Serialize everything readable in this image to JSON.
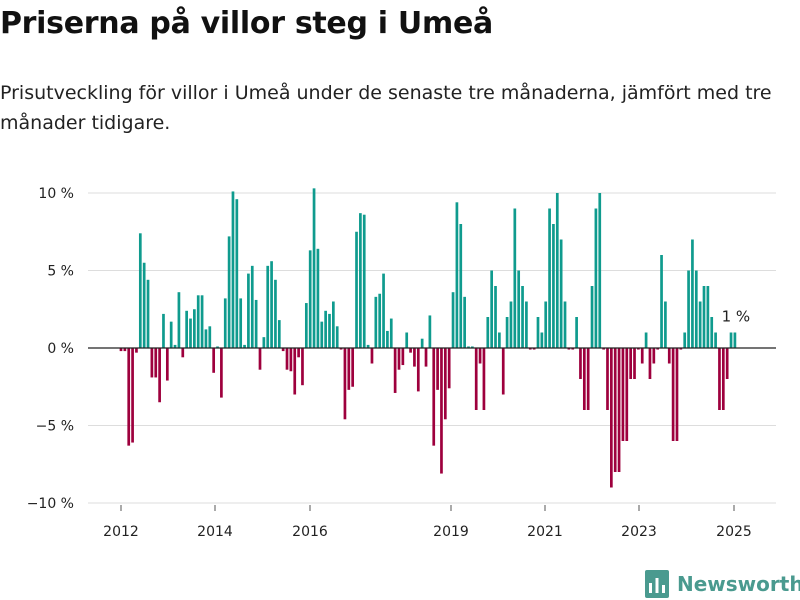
{
  "header": {
    "title": "Priserna på villor steg i Umeå",
    "subtitle": "Prisutveckling för villor i Umeå under de senaste tre månaderna, jämfört med tre månader tidigare."
  },
  "brand": {
    "name": "Newsworthy",
    "icon": "bar-chart-logo-icon"
  },
  "colors": {
    "positive": "#0f9b8e",
    "negative": "#9e003d",
    "grid": "#dddddd",
    "zero_line": "#222222",
    "text": "#222222"
  },
  "chart_data": {
    "type": "bar",
    "title": "Priserna på villor steg i Umeå",
    "subtitle": "Prisutveckling för villor i Umeå under de senaste tre månaderna, jämfört med tre månader tidigare.",
    "xlabel": "",
    "ylabel": "",
    "unit": "%",
    "ylim": [
      -10,
      10
    ],
    "y_ticks": [
      10,
      5,
      0,
      -5,
      -10
    ],
    "y_tick_labels": [
      "10 %",
      "5 %",
      "0 %",
      "−5 %",
      "−10 %"
    ],
    "x_tick_labels": [
      "2012",
      "2014",
      "2016",
      "2019",
      "2021",
      "2023",
      "2025"
    ],
    "grid": true,
    "annotation": {
      "text": "1 %",
      "target": "last-bar"
    },
    "values": [
      -0.2,
      -0.2,
      -6.3,
      -6.1,
      -0.3,
      7.4,
      5.5,
      4.4,
      -1.9,
      -1.9,
      -3.5,
      2.2,
      -2.1,
      1.7,
      0.2,
      3.6,
      -0.6,
      2.4,
      1.9,
      2.5,
      3.4,
      3.4,
      1.2,
      1.4,
      -1.6,
      0.1,
      -3.2,
      3.2,
      7.2,
      10.1,
      9.6,
      3.2,
      0.2,
      4.8,
      5.3,
      3.1,
      -1.4,
      0.7,
      5.3,
      5.6,
      4.4,
      1.8,
      -0.2,
      -1.4,
      -1.5,
      -3.0,
      -0.6,
      -2.4,
      2.9,
      6.3,
      10.3,
      6.4,
      1.7,
      2.4,
      2.2,
      3.0,
      1.4,
      -0.1,
      -4.6,
      -2.7,
      -2.5,
      7.5,
      8.7,
      8.6,
      0.2,
      -1.0,
      3.3,
      3.5,
      4.8,
      1.1,
      1.9,
      -2.9,
      -1.4,
      -1.1,
      1.0,
      -0.3,
      -1.2,
      -2.8,
      0.6,
      -1.2,
      2.1,
      -6.3,
      -2.7,
      -8.1,
      -4.6,
      -2.6,
      3.6,
      9.4,
      8.0,
      3.3,
      0.1,
      0.1,
      -4.0,
      -1.0,
      -4.0,
      2.0,
      5.0,
      4.0,
      1.0,
      -3.0,
      2.0,
      3.0,
      9.0,
      5.0,
      4.0,
      3.0,
      -0.1,
      -0.1,
      2.0,
      1.0,
      3.0,
      9.0,
      8.0,
      10.0,
      7.0,
      3.0,
      -0.1,
      -0.1,
      2.0,
      -2.0,
      -4.0,
      -4.0,
      4.0,
      9.0,
      10.0,
      -0.1,
      -4.0,
      -9.0,
      -8.0,
      -8.0,
      -6.0,
      -6.0,
      -2.0,
      -2.0,
      -0.1,
      -1.0,
      1.0,
      -2.0,
      -1.0,
      -0.1,
      6.0,
      3.0,
      -1.0,
      -6.0,
      -6.0,
      -0.1,
      1.0,
      5.0,
      7.0,
      5.0,
      3.0,
      4.0,
      4.0,
      2.0,
      1.0,
      -4.0,
      -4.0,
      -2.0,
      1.0,
      1.0
    ]
  }
}
